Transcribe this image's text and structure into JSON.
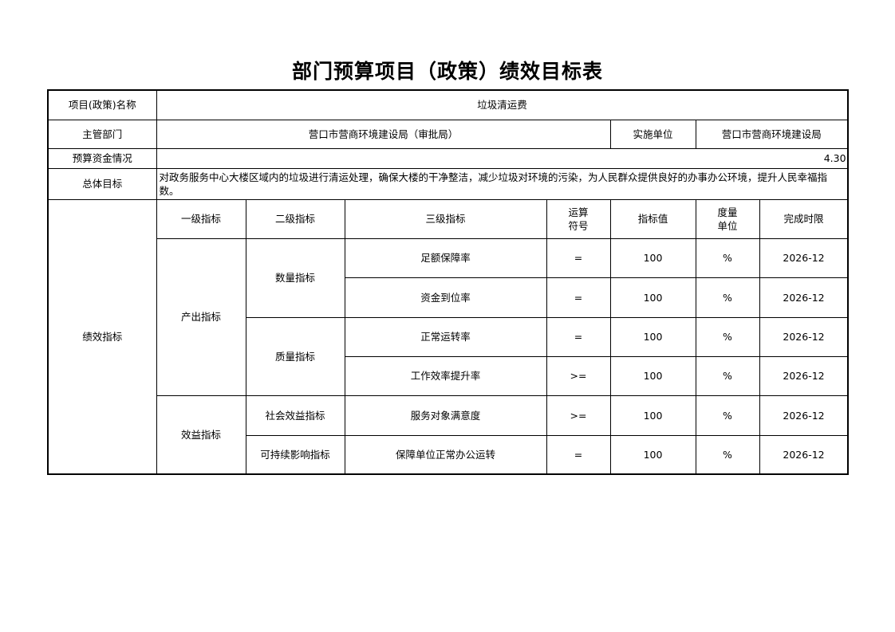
{
  "title": "部门预算项目（政策）绩效目标表",
  "project_name_label": "项目(政策)名称",
  "project_name": "垃圾清运费",
  "dept_label": "主管部门",
  "dept": "营口市营商环境建设局（审批局）",
  "impl_label": "实施单位",
  "impl": "营口市营商环境建设局",
  "budget_label": "预算资金情况",
  "budget": "4.30",
  "goal_label": "总体目标",
  "goal": "对政务服务中心大楼区域内的垃圾进行清运处理，确保大楼的干净整洁，减少垃圾对环境的污染，为人民群众提供良好的办事办公环境，提升人民幸福指数。",
  "perf_label": "绩效指标",
  "headers": [
    "一级指标",
    "二级指标",
    "三级指标",
    "运算符号",
    "指标值",
    "度量单位",
    "完成时限"
  ],
  "level1": [
    "产出指标",
    "效益指标"
  ],
  "level2": [
    "数量指标",
    "质量指标",
    "社会效益指标",
    "可持续影响指标"
  ],
  "rows": [
    {
      "l3": "足额保障率",
      "op": "=",
      "val": "100",
      "unit": "%",
      "date": "2026-12"
    },
    {
      "l3": "资金到位率",
      "op": "=",
      "val": "100",
      "unit": "%",
      "date": "2026-12"
    },
    {
      "l3": "正常运转率",
      "op": "=",
      "val": "100",
      "unit": "%",
      "date": "2026-12"
    },
    {
      "l3": "工作效率提升率",
      "op": ">=",
      "val": "100",
      "unit": "%",
      "date": "2026-12"
    },
    {
      "l3": "服务对象满意度",
      "op": ">=",
      "val": "100",
      "unit": "%",
      "date": "2026-12"
    },
    {
      "l3": "保障单位正常办公运转",
      "op": "=",
      "val": "100",
      "unit": "%",
      "date": "2026-12"
    }
  ]
}
